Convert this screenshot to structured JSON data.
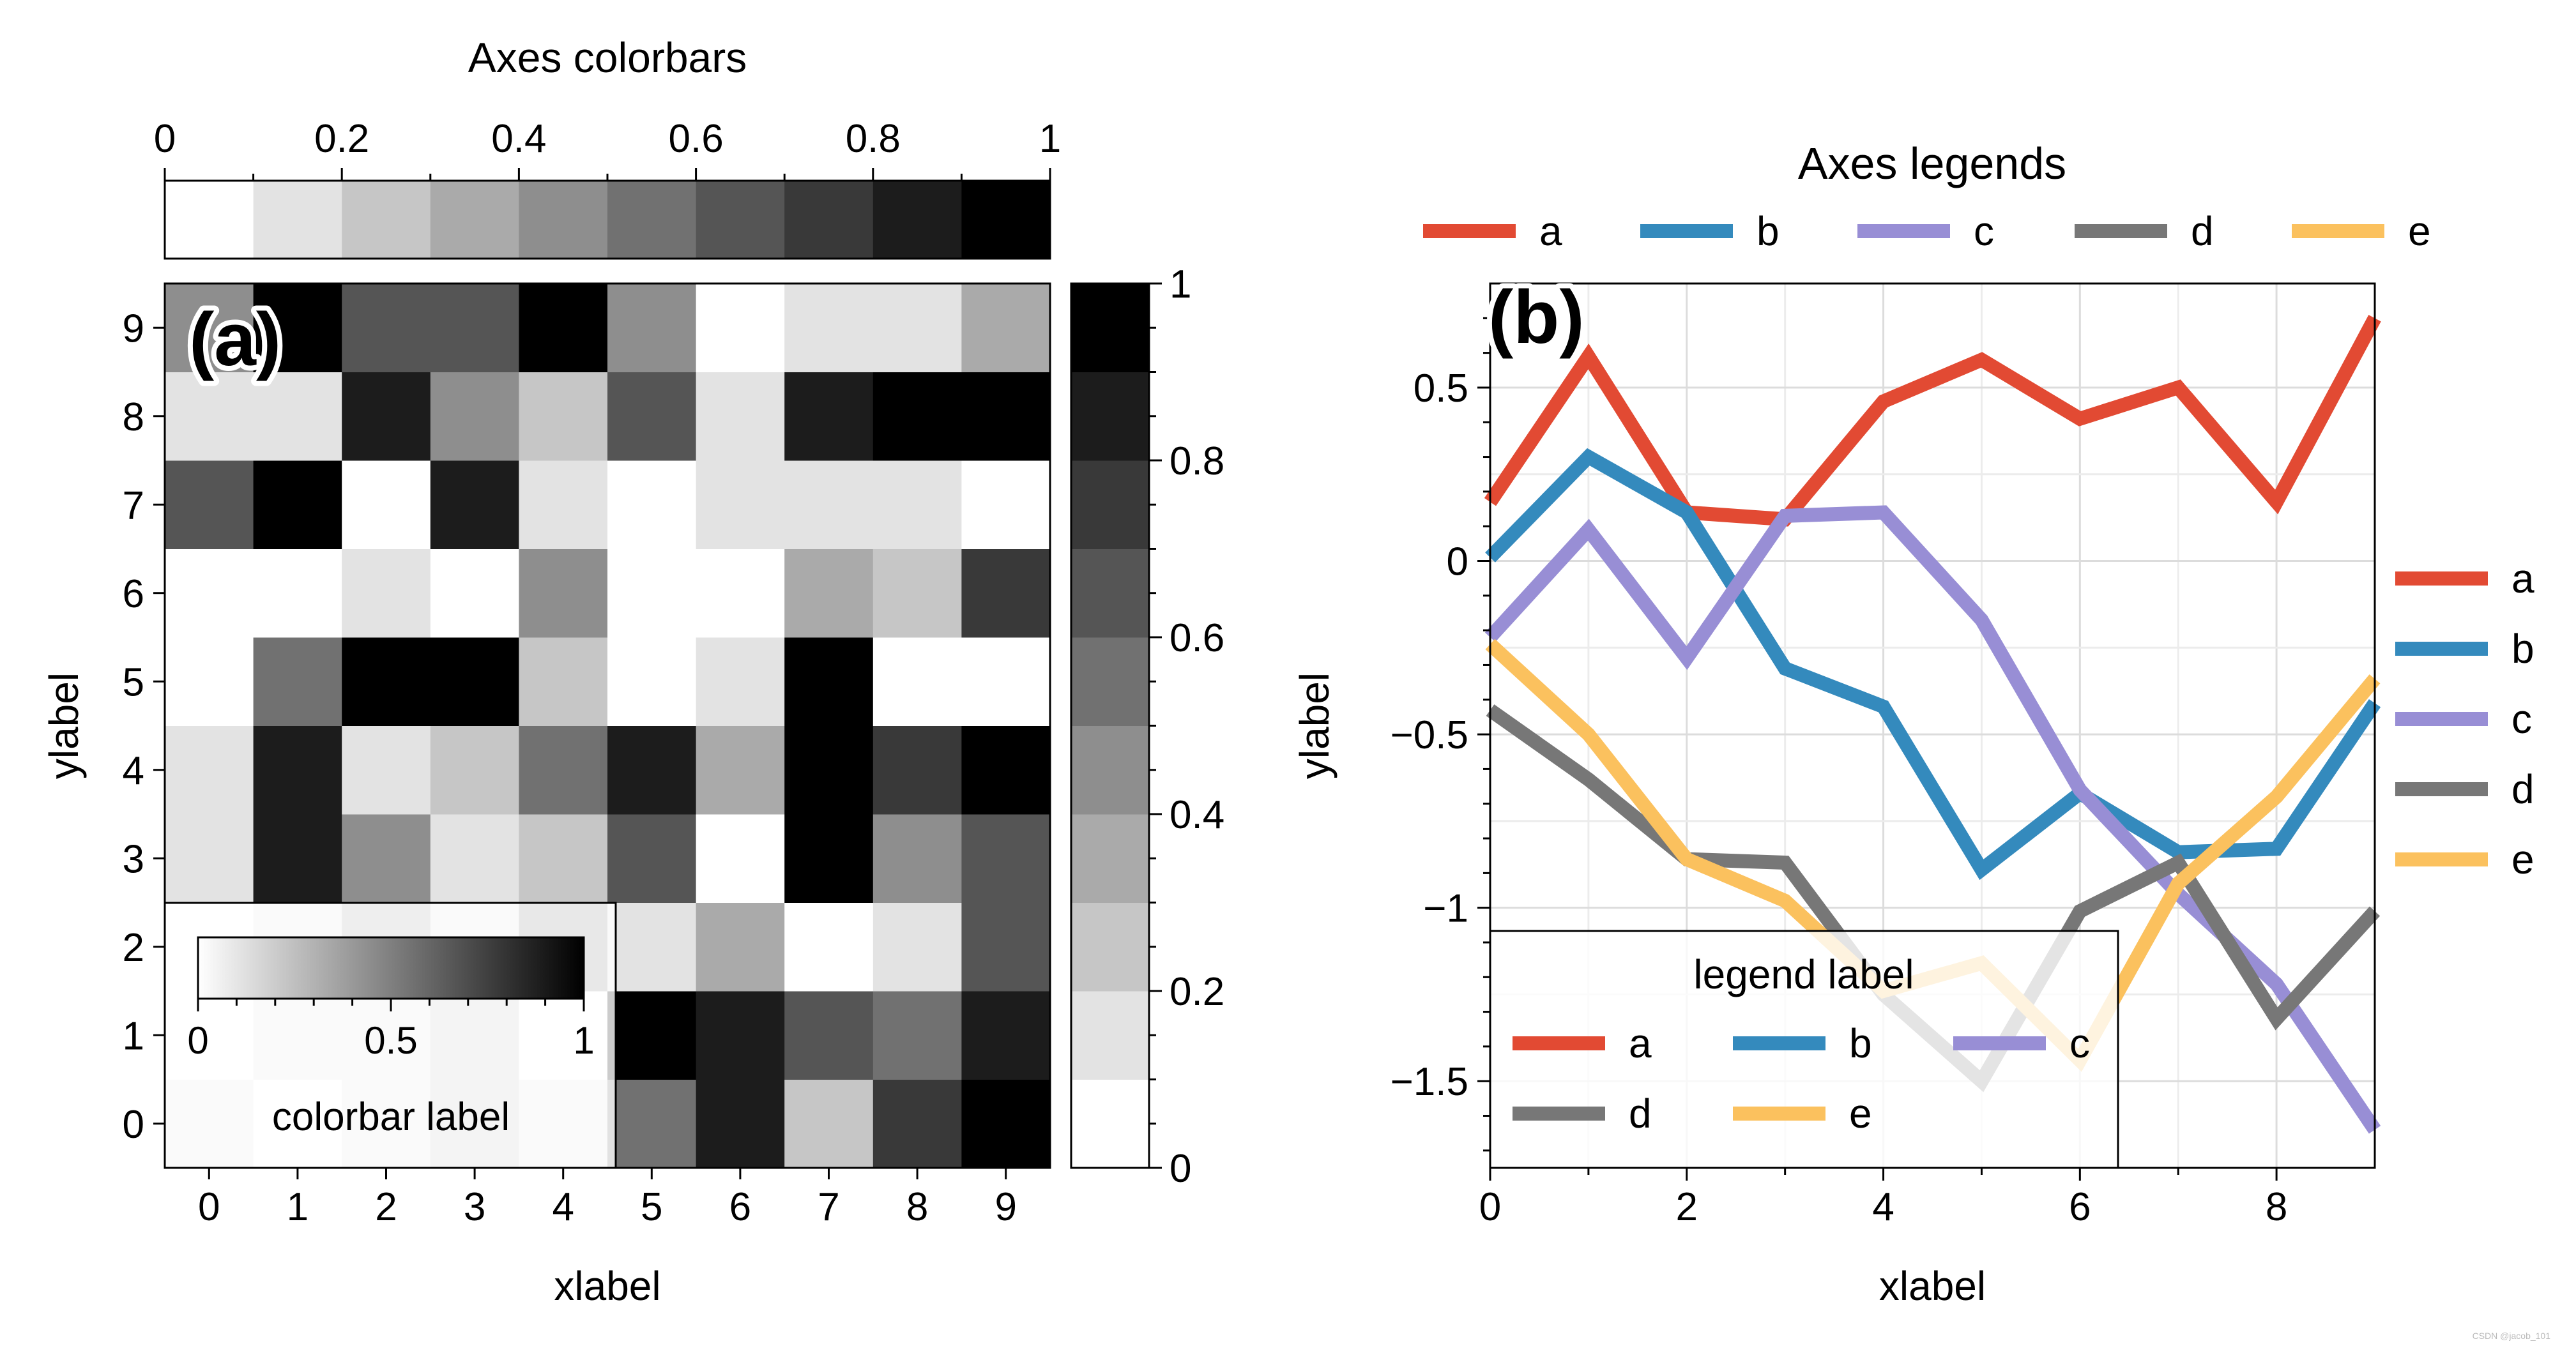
{
  "chart_data": [
    {
      "type": "heatmap",
      "panel_label": "(a)",
      "xlabel": "xlabel",
      "ylabel": "ylabel",
      "x_ticks": [
        "0",
        "1",
        "2",
        "3",
        "4",
        "5",
        "6",
        "7",
        "8",
        "9"
      ],
      "y_ticks": [
        "0",
        "1",
        "2",
        "3",
        "4",
        "5",
        "6",
        "7",
        "8",
        "9"
      ],
      "cmap": "Greys",
      "vlim": [
        0,
        1
      ],
      "levels": 10,
      "values_row_y0_to_y9": [
        [
          0.18,
          0.05,
          0.15,
          0.25,
          0.18,
          0.55,
          0.88,
          0.28,
          0.75,
          0.98
        ],
        [
          0.07,
          0.15,
          0.1,
          0.22,
          0.05,
          0.9,
          0.85,
          0.62,
          0.58,
          0.85
        ],
        [
          0.04,
          0.1,
          0.3,
          0.12,
          0.4,
          0.12,
          0.3,
          0.0,
          0.14,
          0.6
        ],
        [
          0.18,
          0.85,
          0.48,
          0.1,
          0.25,
          0.62,
          0.08,
          0.92,
          0.45,
          0.6
        ],
        [
          0.18,
          0.88,
          0.15,
          0.2,
          0.5,
          0.82,
          0.32,
          0.95,
          0.76,
          0.92
        ],
        [
          0.04,
          0.55,
          0.95,
          0.98,
          0.2,
          0.04,
          0.1,
          0.98,
          0.0,
          0.02
        ],
        [
          0.0,
          0.08,
          0.15,
          0.06,
          0.46,
          0.06,
          0.03,
          0.36,
          0.25,
          0.72
        ],
        [
          0.68,
          1.0,
          0.06,
          0.8,
          0.12,
          0.0,
          0.15,
          0.15,
          0.15,
          0.02
        ],
        [
          0.12,
          0.15,
          0.88,
          0.46,
          0.24,
          0.66,
          0.16,
          0.82,
          0.9,
          0.95
        ],
        [
          0.4,
          0.96,
          0.62,
          0.62,
          0.9,
          0.4,
          0.02,
          0.15,
          0.15,
          0.38
        ]
      ],
      "top_colorbar": {
        "title": "Axes colorbars",
        "ticks": [
          "0",
          "0.2",
          "0.4",
          "0.6",
          "0.8",
          "1"
        ],
        "levels": 10
      },
      "right_colorbar": {
        "ticks": [
          "0",
          "0.2",
          "0.4",
          "0.6",
          "0.8",
          "1"
        ],
        "levels": 10
      },
      "inset_colorbar": {
        "label": "colorbar label",
        "ticks": [
          "0",
          "0.5",
          "1"
        ],
        "placement": "lower-left"
      }
    },
    {
      "type": "line",
      "panel_label": "(b)",
      "xlabel": "xlabel",
      "ylabel": "ylabel",
      "xlim": [
        0,
        9
      ],
      "ylim": [
        -1.75,
        0.8
      ],
      "x_ticks": [
        "0",
        "2",
        "4",
        "6",
        "8"
      ],
      "y_ticks": [
        {
          "v": 0.5,
          "t": "0.5"
        },
        {
          "v": 0,
          "t": "0"
        },
        {
          "v": -0.5,
          "t": "−0.5"
        },
        {
          "v": -1,
          "t": "−1"
        },
        {
          "v": -1.5,
          "t": "−1.5"
        }
      ],
      "grid": true,
      "x": [
        0,
        1,
        2,
        3,
        4,
        5,
        6,
        7,
        8,
        9
      ],
      "series": [
        {
          "name": "a",
          "color": "#e24a33",
          "values": [
            0.17,
            0.59,
            0.14,
            0.12,
            0.46,
            0.58,
            0.41,
            0.5,
            0.17,
            0.7
          ]
        },
        {
          "name": "b",
          "color": "#348abd",
          "values": [
            0.01,
            0.3,
            0.14,
            -0.31,
            -0.42,
            -0.89,
            -0.67,
            -0.84,
            -0.83,
            -0.41
          ]
        },
        {
          "name": "c",
          "color": "#988ed5",
          "values": [
            -0.22,
            0.09,
            -0.28,
            0.13,
            0.14,
            -0.17,
            -0.66,
            -0.96,
            -1.22,
            -1.64
          ]
        },
        {
          "name": "d",
          "color": "#777777",
          "values": [
            -0.43,
            -0.63,
            -0.86,
            -0.87,
            -1.25,
            -1.5,
            -1.01,
            -0.87,
            -1.32,
            -1.01
          ]
        },
        {
          "name": "e",
          "color": "#fbc15e",
          "values": [
            -0.24,
            -0.5,
            -0.86,
            -0.98,
            -1.24,
            -1.16,
            -1.44,
            -0.93,
            -0.68,
            -0.34
          ]
        }
      ],
      "top_legend": {
        "title": "Axes legends",
        "entries": [
          "a",
          "b",
          "c",
          "d",
          "e"
        ],
        "placement": "top"
      },
      "right_legend": {
        "entries": [
          "a",
          "b",
          "c",
          "d",
          "e"
        ],
        "placement": "right"
      },
      "inset_legend": {
        "title": "legend label",
        "entries": [
          "a",
          "b",
          "c",
          "d",
          "e"
        ],
        "placement": "lower-left"
      }
    }
  ],
  "watermark": "CSDN @jacob_101"
}
